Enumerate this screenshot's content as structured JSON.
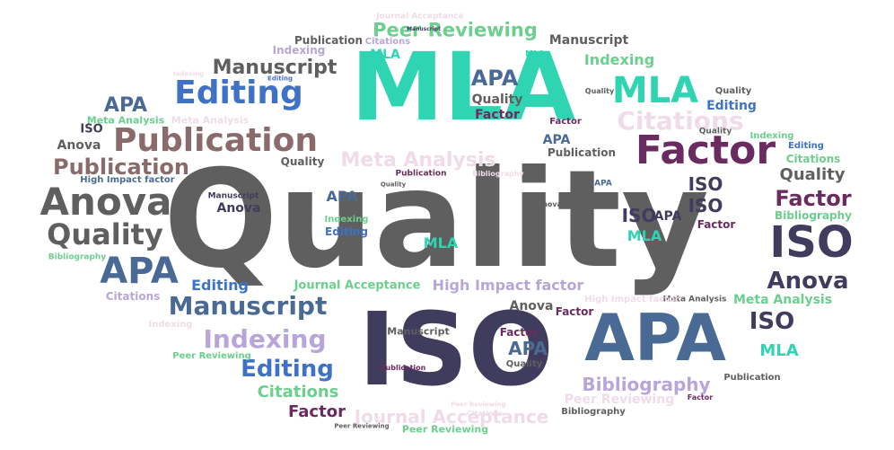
{
  "colors": {
    "background": "#ffffff",
    "gray": "#5f5f5f",
    "dark_navy": "#3f3c5e",
    "steel_blue": "#4a6a96",
    "royal_blue": "#3f72c6",
    "teal": "#2fd4b2",
    "plum": "#6a2c60",
    "mauve": "#8a6a6a",
    "lavender": "#b8a6d8",
    "pale_pink": "#efdce8",
    "green": "#6ccf8e"
  },
  "words": [
    {
      "text": "Quality",
      "color": "#5f5f5f"
    },
    {
      "text": "MLA",
      "color": "#2fd4b2"
    },
    {
      "text": "ISO",
      "color": "#3f3c5e"
    },
    {
      "text": "APA",
      "color": "#4a6a96"
    },
    {
      "text": "Editing",
      "color": "#3f72c6"
    },
    {
      "text": "Publication",
      "color": "#8a6a6a"
    },
    {
      "text": "Anova",
      "color": "#5f5f5f"
    },
    {
      "text": "Factor",
      "color": "#6a2c60"
    },
    {
      "text": "ISO",
      "color": "#3f3c5e"
    },
    {
      "text": "MLA",
      "color": "#2fd4b2"
    },
    {
      "text": "Peer Reviewing",
      "color": "#6ccf8e"
    },
    {
      "text": "Manuscript",
      "color": "#5f5f5f"
    },
    {
      "text": "Publication",
      "color": "#8a6a6a"
    },
    {
      "text": "Quality",
      "color": "#5f5f5f"
    },
    {
      "text": "APA",
      "color": "#4a6a96"
    },
    {
      "text": "Manuscript",
      "color": "#4a6a96"
    },
    {
      "text": "Indexing",
      "color": "#b8a6d8"
    },
    {
      "text": "Editing",
      "color": "#3f72c6"
    },
    {
      "text": "Citations",
      "color": "#efdce8"
    },
    {
      "text": "Meta Analysis",
      "color": "#efdce8"
    },
    {
      "text": "Factor",
      "color": "#6a2c60"
    },
    {
      "text": "Anova",
      "color": "#3f3c5e"
    },
    {
      "text": "Bibliography",
      "color": "#b8a6d8"
    },
    {
      "text": "Journal Acceptance",
      "color": "#efdce8"
    },
    {
      "text": "High Impact factor",
      "color": "#b8a6d8"
    },
    {
      "text": "Citations",
      "color": "#6ccf8e"
    },
    {
      "text": "Factor",
      "color": "#6a2c60"
    },
    {
      "text": "Quality",
      "color": "#5f5f5f"
    },
    {
      "text": "ISO",
      "color": "#3f3c5e"
    },
    {
      "text": "MLA",
      "color": "#2fd4b2"
    },
    {
      "text": "APA",
      "color": "#4a6a96"
    },
    {
      "text": "Quality",
      "color": "#5f5f5f"
    },
    {
      "text": "Factor",
      "color": "#6a2c60"
    },
    {
      "text": "Indexing",
      "color": "#6ccf8e"
    },
    {
      "text": "Manuscript",
      "color": "#5f5f5f"
    },
    {
      "text": "Publication",
      "color": "#5f5f5f"
    },
    {
      "text": "Citations",
      "color": "#b8a6d8"
    },
    {
      "text": "Meta Analysis",
      "color": "#6ccf8e"
    },
    {
      "text": "Peer Reviewing",
      "color": "#efdce8"
    },
    {
      "text": "Journal Acceptance",
      "color": "#6ccf8e"
    },
    {
      "text": "ISO",
      "color": "#3f3c5e"
    },
    {
      "text": "ISO",
      "color": "#3f3c5e"
    },
    {
      "text": "ISO",
      "color": "#3f3c5e"
    },
    {
      "text": "APA",
      "color": "#4a6a96"
    },
    {
      "text": "APA",
      "color": "#4a6a96"
    },
    {
      "text": "APA",
      "color": "#4a6a96"
    },
    {
      "text": "APA",
      "color": "#4a6a96"
    },
    {
      "text": "APA",
      "color": "#3f3c5e"
    },
    {
      "text": "MLA",
      "color": "#2fd4b2"
    },
    {
      "text": "MLA",
      "color": "#2fd4b2"
    },
    {
      "text": "MLA",
      "color": "#2fd4b2"
    },
    {
      "text": "Anova",
      "color": "#5f5f5f"
    },
    {
      "text": "Anova",
      "color": "#3f3c5e"
    },
    {
      "text": "Anova",
      "color": "#5f5f5f"
    },
    {
      "text": "Quality",
      "color": "#5f5f5f"
    },
    {
      "text": "Quality",
      "color": "#5f5f5f"
    },
    {
      "text": "Quality",
      "color": "#5f5f5f"
    },
    {
      "text": "Factor",
      "color": "#6a2c60"
    },
    {
      "text": "Factor",
      "color": "#6a2c60"
    },
    {
      "text": "Factor",
      "color": "#6a2c60"
    },
    {
      "text": "Factor",
      "color": "#6a2c60"
    },
    {
      "text": "Editing",
      "color": "#3f72c6"
    },
    {
      "text": "Editing",
      "color": "#3f72c6"
    },
    {
      "text": "Editing",
      "color": "#3f72c6"
    },
    {
      "text": "Editing",
      "color": "#3f72c6"
    },
    {
      "text": "Indexing",
      "color": "#6ccf8e"
    },
    {
      "text": "Indexing",
      "color": "#b8a6d8"
    },
    {
      "text": "Indexing",
      "color": "#6ccf8e"
    },
    {
      "text": "Indexing",
      "color": "#efdce8"
    },
    {
      "text": "Publication",
      "color": "#5f5f5f"
    },
    {
      "text": "Publication",
      "color": "#6a2c60"
    },
    {
      "text": "Publication",
      "color": "#5f5f5f"
    },
    {
      "text": "Publication",
      "color": "#6a2c60"
    },
    {
      "text": "Citations",
      "color": "#b8a6d8"
    },
    {
      "text": "Citations",
      "color": "#6ccf8e"
    },
    {
      "text": "Citations",
      "color": "#efdce8"
    },
    {
      "text": "Bibliography",
      "color": "#6ccf8e"
    },
    {
      "text": "Bibliography",
      "color": "#6ccf8e"
    },
    {
      "text": "Bibliography",
      "color": "#efdce8"
    },
    {
      "text": "Bibliography",
      "color": "#5f5f5f"
    },
    {
      "text": "Meta Analysis",
      "color": "#6ccf8e"
    },
    {
      "text": "Meta Analysis",
      "color": "#efdce8"
    },
    {
      "text": "Meta Analysis",
      "color": "#5f5f5f"
    },
    {
      "text": "Journal Acceptance",
      "color": "#efdce8"
    },
    {
      "text": "High Impact factor",
      "color": "#4a6a96"
    },
    {
      "text": "High Impact factor",
      "color": "#efdce8"
    },
    {
      "text": "Peer Reviewing",
      "color": "#6ccf8e"
    },
    {
      "text": "Peer Reviewing",
      "color": "#6ccf8e"
    },
    {
      "text": "Peer Reviewing",
      "color": "#efdce8"
    },
    {
      "text": "Peer Reviewing",
      "color": "#5f5f5f"
    },
    {
      "text": "Manuscript",
      "color": "#5f5f5f"
    },
    {
      "text": "Manuscript",
      "color": "#3f3c5e"
    },
    {
      "text": "Manuscript",
      "color": "#3f3c5e"
    },
    {
      "text": "ISO",
      "color": "#3f3c5e"
    },
    {
      "text": "Quality",
      "color": "#5f5f5f"
    },
    {
      "text": "Quality",
      "color": "#5f5f5f"
    },
    {
      "text": "Quality",
      "color": "#5f5f5f"
    },
    {
      "text": "MLA",
      "color": "#2fd4b2"
    },
    {
      "text": "APA",
      "color": "#4a6a96"
    },
    {
      "text": "Anova",
      "color": "#5f5f5f"
    },
    {
      "text": "Editing",
      "color": "#3f72c6"
    },
    {
      "text": "Indexing",
      "color": "#efdce8"
    },
    {
      "text": "Factor",
      "color": "#6a2c60"
    }
  ]
}
